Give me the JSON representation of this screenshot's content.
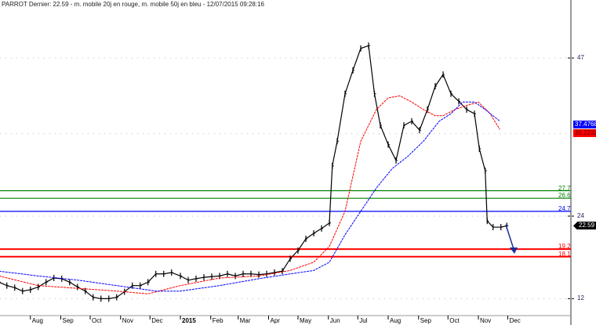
{
  "title": "PARROT Dernier: 22.59 - m. mobile 20j en rouge, m. mobile 50j en bleu - 12/07/2015 09:28:16",
  "chart_data": {
    "type": "line",
    "title": "PARROT Dernier: 22.59 - m. mobile 20j en rouge, m. mobile 50j en bleu - 12/07/2015 09:28:16",
    "xlabel": "",
    "ylabel": "",
    "ylim": [
      11.5,
      50
    ],
    "grid": true,
    "x_ticks": [
      "Aug",
      "Sep",
      "Oct",
      "Nov",
      "Dec",
      "2015",
      "Feb",
      "Mar",
      "Apr",
      "May",
      "Jun",
      "Jul",
      "Aug",
      "Sep",
      "Oct",
      "Nov",
      "Dec"
    ],
    "x_tick_dates": [
      "2014-08-01",
      "2014-09-01",
      "2014-10-01",
      "2014-11-01",
      "2014-12-01",
      "2015-01-01",
      "2015-02-01",
      "2015-03-01",
      "2015-04-01",
      "2015-05-01",
      "2015-06-01",
      "2015-07-01",
      "2015-08-01",
      "2015-09-01",
      "2015-10-01",
      "2015-11-01",
      "2015-12-01"
    ],
    "y_ticks": [
      {
        "value": 47,
        "label": "47"
      },
      {
        "value": 24,
        "label": "24"
      },
      {
        "value": 12,
        "label": "12"
      }
    ],
    "last_price": {
      "value": 22.59,
      "label": "22.59",
      "color": "#000000"
    },
    "series": [
      {
        "name": "PARROT",
        "color": "#000000",
        "points": [
          [
            "2014-06-30",
            14.4
          ],
          [
            "2014-07-08",
            13.9
          ],
          [
            "2014-07-16",
            13.6
          ],
          [
            "2014-07-24",
            13.1
          ],
          [
            "2014-08-01",
            13.3
          ],
          [
            "2014-08-09",
            13.7
          ],
          [
            "2014-08-17",
            14.4
          ],
          [
            "2014-08-25",
            15.0
          ],
          [
            "2014-09-02",
            14.9
          ],
          [
            "2014-09-10",
            14.4
          ],
          [
            "2014-09-18",
            13.7
          ],
          [
            "2014-09-26",
            13.1
          ],
          [
            "2014-10-04",
            12.2
          ],
          [
            "2014-10-12",
            12.0
          ],
          [
            "2014-10-20",
            12.0
          ],
          [
            "2014-10-28",
            12.2
          ],
          [
            "2014-11-05",
            13.0
          ],
          [
            "2014-11-13",
            13.9
          ],
          [
            "2014-11-21",
            13.9
          ],
          [
            "2014-11-29",
            14.4
          ],
          [
            "2014-12-07",
            15.6
          ],
          [
            "2014-12-15",
            15.6
          ],
          [
            "2014-12-23",
            15.8
          ],
          [
            "2015-01-01",
            15.3
          ],
          [
            "2015-01-09",
            14.7
          ],
          [
            "2015-01-17",
            14.9
          ],
          [
            "2015-01-25",
            15.1
          ],
          [
            "2015-02-02",
            15.2
          ],
          [
            "2015-02-10",
            15.3
          ],
          [
            "2015-02-18",
            15.6
          ],
          [
            "2015-02-26",
            15.3
          ],
          [
            "2015-03-06",
            15.6
          ],
          [
            "2015-03-14",
            15.6
          ],
          [
            "2015-03-22",
            15.5
          ],
          [
            "2015-03-30",
            15.6
          ],
          [
            "2015-04-07",
            15.8
          ],
          [
            "2015-04-15",
            16.0
          ],
          [
            "2015-04-23",
            17.8
          ],
          [
            "2015-05-01",
            19.0
          ],
          [
            "2015-05-09",
            20.7
          ],
          [
            "2015-05-17",
            21.5
          ],
          [
            "2015-05-25",
            22.2
          ],
          [
            "2015-06-02",
            23.0
          ],
          [
            "2015-06-05",
            31.3
          ],
          [
            "2015-06-10",
            34.9
          ],
          [
            "2015-06-18",
            41.8
          ],
          [
            "2015-06-26",
            45.2
          ],
          [
            "2015-07-04",
            48.4
          ],
          [
            "2015-07-12",
            48.8
          ],
          [
            "2015-07-18",
            41.8
          ],
          [
            "2015-07-24",
            37.2
          ],
          [
            "2015-08-01",
            34.4
          ],
          [
            "2015-08-09",
            32.1
          ],
          [
            "2015-08-17",
            37.2
          ],
          [
            "2015-08-25",
            37.8
          ],
          [
            "2015-09-02",
            36.5
          ],
          [
            "2015-09-10",
            39.5
          ],
          [
            "2015-09-18",
            42.9
          ],
          [
            "2015-09-26",
            44.6
          ],
          [
            "2015-10-04",
            41.8
          ],
          [
            "2015-10-12",
            40.7
          ],
          [
            "2015-10-20",
            39.5
          ],
          [
            "2015-10-28",
            38.9
          ],
          [
            "2015-11-02",
            33.8
          ],
          [
            "2015-11-08",
            30.6
          ],
          [
            "2015-11-10",
            23.3
          ],
          [
            "2015-11-16",
            22.4
          ],
          [
            "2015-11-24",
            22.4
          ],
          [
            "2015-11-30",
            22.59
          ]
        ]
      },
      {
        "name": "m. mobile 20j",
        "color": "#ff0000",
        "value_label": "36.2232",
        "points": [
          [
            "2014-06-30",
            15.3
          ],
          [
            "2014-08-09",
            13.9
          ],
          [
            "2014-09-18",
            13.5
          ],
          [
            "2014-10-28",
            13.1
          ],
          [
            "2014-11-29",
            12.7
          ],
          [
            "2015-01-01",
            13.9
          ],
          [
            "2015-02-10",
            15.0
          ],
          [
            "2015-03-22",
            15.3
          ],
          [
            "2015-04-23",
            16.1
          ],
          [
            "2015-05-17",
            17.3
          ],
          [
            "2015-06-02",
            19.6
          ],
          [
            "2015-06-18",
            24.7
          ],
          [
            "2015-07-04",
            34.9
          ],
          [
            "2015-07-20",
            39.5
          ],
          [
            "2015-08-01",
            41.2
          ],
          [
            "2015-08-13",
            41.5
          ],
          [
            "2015-08-25",
            40.6
          ],
          [
            "2015-09-06",
            39.5
          ],
          [
            "2015-09-18",
            38.6
          ],
          [
            "2015-09-26",
            38.6
          ],
          [
            "2015-10-08",
            39.5
          ],
          [
            "2015-10-20",
            40.1
          ],
          [
            "2015-11-01",
            40.6
          ],
          [
            "2015-11-13",
            38.9
          ],
          [
            "2015-11-23",
            36.6
          ]
        ]
      },
      {
        "name": "m. mobile 50j",
        "color": "#0000ff",
        "value_label": "37.4768",
        "points": [
          [
            "2014-06-30",
            16.0
          ],
          [
            "2014-08-09",
            15.3
          ],
          [
            "2014-09-18",
            14.7
          ],
          [
            "2014-10-28",
            13.9
          ],
          [
            "2014-12-07",
            13.1
          ],
          [
            "2015-01-01",
            13.1
          ],
          [
            "2015-02-10",
            13.9
          ],
          [
            "2015-03-22",
            14.9
          ],
          [
            "2015-04-23",
            15.6
          ],
          [
            "2015-05-17",
            16.1
          ],
          [
            "2015-06-02",
            17.3
          ],
          [
            "2015-06-18",
            21.3
          ],
          [
            "2015-07-04",
            24.7
          ],
          [
            "2015-07-20",
            28.1
          ],
          [
            "2015-08-05",
            30.9
          ],
          [
            "2015-08-21",
            32.7
          ],
          [
            "2015-09-06",
            34.9
          ],
          [
            "2015-09-22",
            37.8
          ],
          [
            "2015-10-04",
            38.9
          ],
          [
            "2015-10-16",
            40.6
          ],
          [
            "2015-10-28",
            40.6
          ],
          [
            "2015-11-08",
            39.5
          ],
          [
            "2015-11-23",
            37.8
          ]
        ]
      }
    ],
    "levels": [
      {
        "value": 27.7,
        "label": "27.7",
        "color": "#008000"
      },
      {
        "value": 26.6,
        "label": "26.6",
        "color": "#008000"
      },
      {
        "value": 24.7,
        "label": "24.7",
        "color": "#0000ff"
      },
      {
        "value": 19.2,
        "label": "19.2",
        "color": "#ff0000"
      },
      {
        "value": 18.1,
        "label": "18.1",
        "color": "#ff0000"
      }
    ]
  }
}
